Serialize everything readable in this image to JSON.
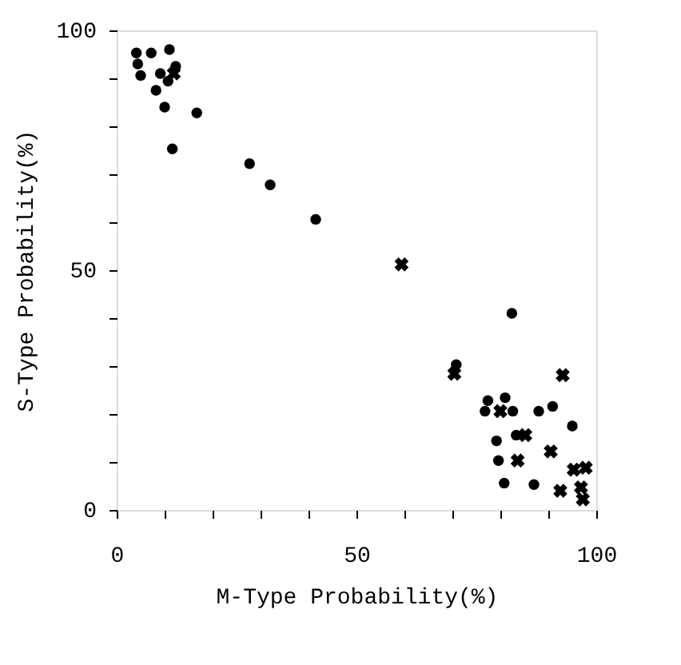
{
  "chart_data": {
    "type": "scatter",
    "xlabel": "M-Type Probability(%)",
    "ylabel": "S-Type Probability(%)",
    "xlim": [
      0,
      100
    ],
    "ylim": [
      0,
      100
    ],
    "xticks": [
      0,
      {
        "value": 10,
        "label": null
      },
      {
        "value": 20,
        "label": null
      },
      {
        "value": 30,
        "label": null
      },
      {
        "value": 40,
        "label": null
      },
      50,
      {
        "value": 60,
        "label": null
      },
      {
        "value": 70,
        "label": null
      },
      {
        "value": 80,
        "label": null
      },
      {
        "value": 90,
        "label": null
      },
      100
    ],
    "yticks": [
      0,
      {
        "value": 10,
        "label": null
      },
      {
        "value": 20,
        "label": null
      },
      {
        "value": 30,
        "label": null
      },
      {
        "value": 40,
        "label": null
      },
      50,
      {
        "value": 60,
        "label": null
      },
      {
        "value": 70,
        "label": null
      },
      {
        "value": 80,
        "label": null
      },
      {
        "value": 90,
        "label": null
      },
      100
    ],
    "grid": false,
    "legend": false,
    "series": [
      {
        "color": "#000000",
        "marker": "circle",
        "x": [
          4.1,
          4.4,
          5,
          7.2,
          11,
          8.2,
          10,
          11.6,
          16.7,
          27.7,
          32,
          41.5,
          82.4,
          70.8,
          77.4,
          76.8,
          81,
          82.6,
          88,
          90.9,
          95,
          79.6,
          80.8,
          87,
          83.3,
          79.2,
          10.7,
          12.3,
          9.1
        ],
        "values": [
          95.3,
          93,
          90.6,
          95.3,
          96,
          87.5,
          84,
          75.3,
          82.8,
          72.2,
          67.8,
          60.6,
          41,
          30.3,
          22.8,
          20.6,
          23.4,
          20.6,
          20.6,
          21.6,
          17.5,
          10.3,
          5.6,
          5.3,
          15.6,
          14.4,
          89.4,
          92.5,
          91
        ]
      },
      {
        "color": "#000000",
        "marker": "cross",
        "x": [
          59.4,
          70.4,
          93,
          80,
          83.6,
          90.5,
          92.5,
          95.3,
          97.8,
          96.8,
          97.2,
          85.2,
          11.9
        ],
        "values": [
          51.2,
          28.4,
          28.1,
          20.6,
          10.3,
          12.2,
          4,
          8.4,
          8.8,
          4.7,
          2.2,
          15.6,
          91
        ]
      }
    ]
  }
}
